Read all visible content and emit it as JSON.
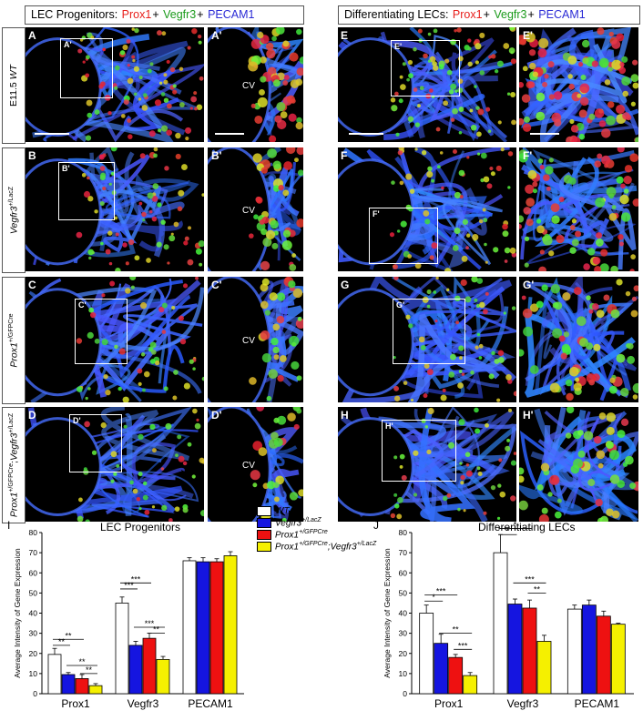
{
  "headers": {
    "left": {
      "title": "LEC Progenitors:",
      "markers": [
        "Prox1",
        "Vegfr3",
        "PECAM1"
      ],
      "plus": "+"
    },
    "right": {
      "title": "Differentiating LECs:",
      "markers": [
        "Prox1",
        "Vegfr3",
        "PECAM1"
      ],
      "plus": "+"
    }
  },
  "marker_colors": {
    "Prox1": "#e8201c",
    "Vegfr3": "#1a9a1a",
    "PECAM1": "#2b2bd6"
  },
  "rows": [
    {
      "genotype_html": "E11.5 <i>WT</i>"
    },
    {
      "genotype_html": "<i>Vegfr3</i><sup>+/LacZ</sup>"
    },
    {
      "genotype_html": "<i>Prox1</i><sup>+/GFPCre</sup>"
    },
    {
      "genotype_html": "<i>Prox1</i><sup>+/GFPCre</sup>;<i>Vegfr3</i><sup>+/LacZ</sup>"
    }
  ],
  "panels": {
    "A": "A",
    "A_inset": "A'",
    "A_zoom": "A'",
    "B": "B",
    "B_inset": "B'",
    "B_zoom": "B'",
    "C": "C",
    "C_inset": "C'",
    "C_zoom": "C'",
    "D": "D",
    "D_inset": "D'",
    "D_zoom": "D'",
    "E": "E",
    "E_inset": "E'",
    "E_zoom": "E'",
    "F": "F",
    "F_inset": "F'",
    "F_zoom": "F'",
    "G": "G",
    "G_inset": "G'",
    "G_zoom": "G'",
    "H": "H",
    "H_inset": "H'",
    "H_zoom": "H'"
  },
  "cv_label": "CV",
  "legend": {
    "entries": [
      {
        "html": "<i>WT</i>",
        "color": "#ffffff"
      },
      {
        "html": "<i>Vegfr3</i><sup><i>+/LacZ</i></sup>",
        "color": "#1515e0"
      },
      {
        "html": "<i>Prox1</i><sup><i>+/GFPCre</i></sup>",
        "color": "#ee1111"
      },
      {
        "html": "<i>Prox1</i><sup><i>+/GFPCre</i></sup><i>;Vegfr3</i><sup><i>+/LacZ</i></sup>",
        "color": "#f5f000"
      }
    ]
  },
  "chart_data": [
    {
      "type": "bar",
      "panel_letter": "I",
      "title": "LEC Progenitors",
      "ylabel": "Average Intensity of Gene Expression",
      "ylim": [
        0,
        80
      ],
      "yticks": [
        0,
        10,
        20,
        30,
        40,
        50,
        60,
        70,
        80
      ],
      "categories": [
        "Prox1",
        "Vegfr3",
        "PECAM1"
      ],
      "series": [
        {
          "name": "WT",
          "values": [
            19.5,
            45,
            66
          ],
          "errors": [
            3,
            3,
            1.5
          ]
        },
        {
          "name": "Vegfr3+/LacZ",
          "values": [
            9.5,
            24,
            65.5
          ],
          "errors": [
            1,
            2,
            2
          ]
        },
        {
          "name": "Prox1+/GFPCre",
          "values": [
            7.5,
            27.5,
            65.5
          ],
          "errors": [
            2,
            2.5,
            1.5
          ]
        },
        {
          "name": "Prox1+/GFPCre;Vegfr3+/LacZ",
          "values": [
            4,
            17,
            68.5
          ],
          "errors": [
            1,
            1.5,
            2
          ]
        }
      ],
      "significance": [
        "**",
        "**",
        "**",
        "**",
        "***",
        "***",
        "***",
        "**"
      ]
    },
    {
      "type": "bar",
      "panel_letter": "J",
      "title": "Differentiating LECs",
      "ylabel": "Average Intensity of Gene Expression",
      "ylim": [
        0,
        80
      ],
      "yticks": [
        0,
        10,
        20,
        30,
        40,
        50,
        60,
        70,
        80
      ],
      "categories": [
        "Prox1",
        "Vegfr3",
        "PECAM1"
      ],
      "series": [
        {
          "name": "WT",
          "values": [
            40,
            70,
            42
          ],
          "errors": [
            4,
            9,
            2
          ]
        },
        {
          "name": "Vegfr3+/LacZ",
          "values": [
            25,
            44.5,
            44
          ],
          "errors": [
            4.5,
            2.5,
            2.5
          ]
        },
        {
          "name": "Prox1+/GFPCre",
          "values": [
            18,
            42.5,
            38.5
          ],
          "errors": [
            1.5,
            4,
            2.5
          ]
        },
        {
          "name": "Prox1+/GFPCre;Vegfr3+/LacZ",
          "values": [
            9,
            26,
            34.5
          ],
          "errors": [
            1.5,
            3,
            0.5
          ]
        }
      ],
      "significance": [
        "*",
        "***",
        "**",
        "***",
        "*",
        "*",
        "***",
        "**"
      ]
    }
  ]
}
